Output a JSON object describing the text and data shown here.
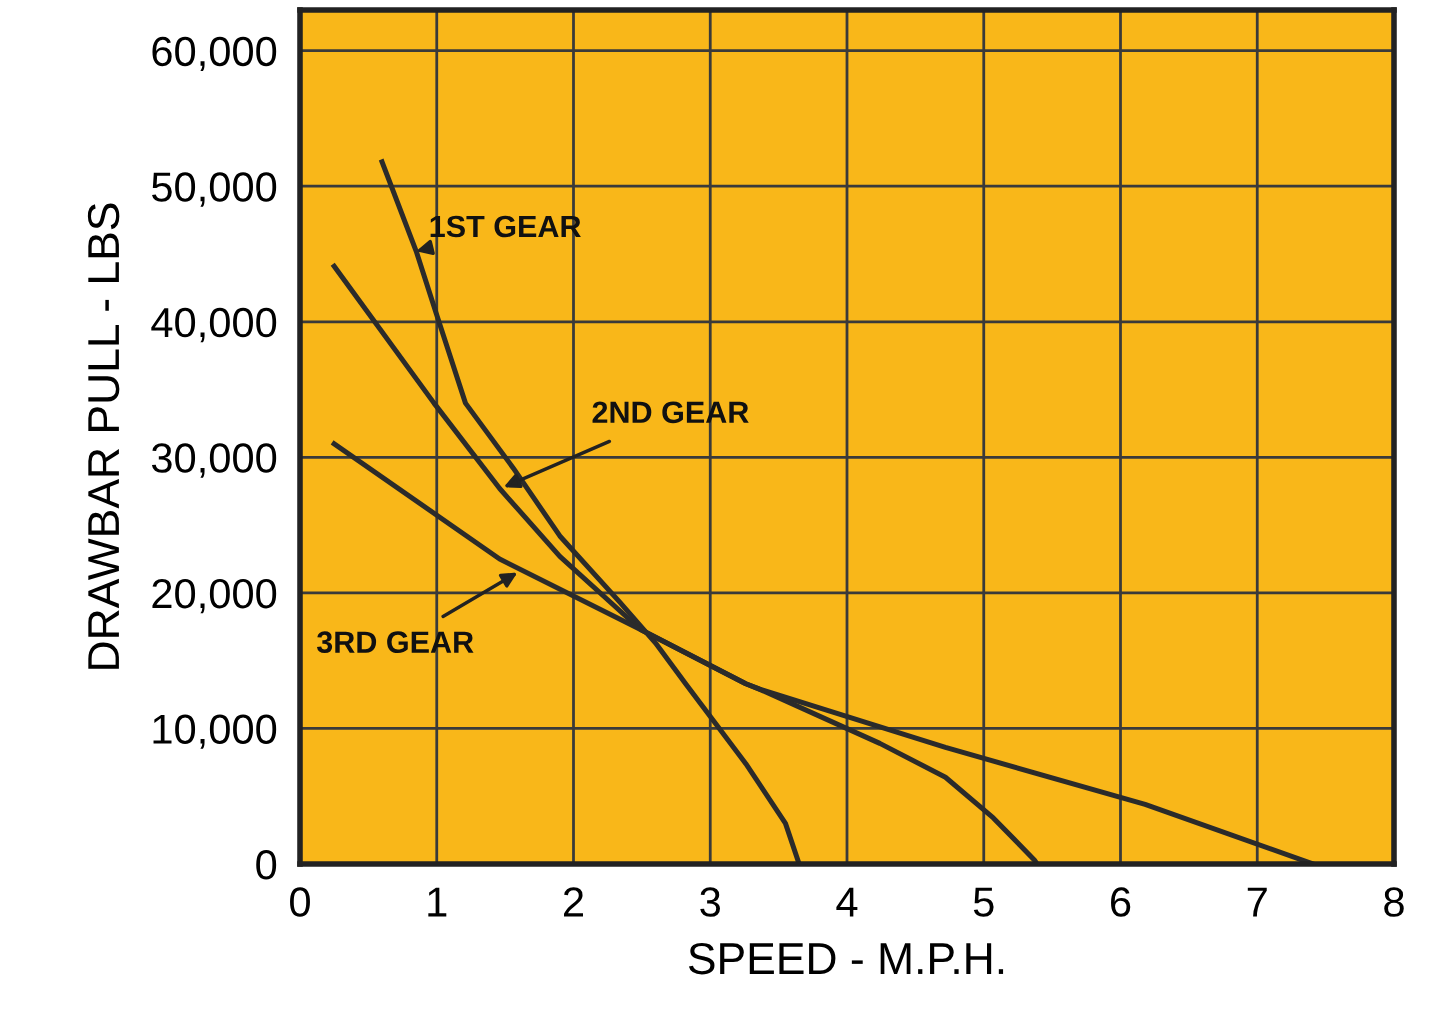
{
  "chart_data": {
    "type": "line",
    "xlabel": "SPEED - M.P.H.",
    "ylabel": "DRAWBAR PULL - LBS",
    "xlim": [
      0,
      8
    ],
    "xticks": [
      0,
      1,
      2,
      3,
      4,
      5,
      6,
      7,
      8
    ],
    "ylim": [
      0,
      63000
    ],
    "yticks": [
      {
        "value": 0,
        "label": "0"
      },
      {
        "value": 10000,
        "label": "10,000"
      },
      {
        "value": 20000,
        "label": "20,000"
      },
      {
        "value": 30000,
        "label": "30,000"
      },
      {
        "value": 40000,
        "label": "40,000"
      },
      {
        "value": 50000,
        "label": "50,000"
      },
      {
        "value": 60000,
        "label": "60,000"
      }
    ],
    "grid": true,
    "legend": false,
    "marker": "none",
    "line_style": "solid",
    "series": [
      {
        "color": "#2b2b2b",
        "x": [
          0.6,
          0.85,
          1.0,
          1.21,
          1.56,
          1.9,
          2.34,
          2.6,
          2.82,
          3.26,
          3.55,
          3.65
        ],
        "values": [
          51800,
          45200,
          40500,
          34000,
          29200,
          24200,
          19300,
          16300,
          13300,
          7400,
          3000,
          0
        ]
      },
      {
        "color": "#2b2b2b",
        "x": [
          0.25,
          0.98,
          1.46,
          1.9,
          2.49,
          3.26,
          3.36,
          4.24,
          4.72,
          5.07,
          5.37,
          5.39
        ],
        "values": [
          44100,
          34000,
          27700,
          22700,
          17300,
          13300,
          12900,
          8900,
          6400,
          3400,
          300,
          0
        ]
      },
      {
        "color": "#2b2b2b",
        "x": [
          0.25,
          1.46,
          2.49,
          3.26,
          3.36,
          4.72,
          6.18,
          7.41
        ],
        "values": [
          31000,
          22500,
          17300,
          13300,
          12900,
          8600,
          4400,
          0
        ]
      }
    ],
    "annotations": [
      {
        "text": "1ST GEAR",
        "x": 0.85,
        "y": 45200
      },
      {
        "text": "2ND GEAR",
        "x": 1.49,
        "y": 27800
      },
      {
        "text": "3RD GEAR",
        "x": 1.59,
        "y": 21500
      }
    ]
  }
}
